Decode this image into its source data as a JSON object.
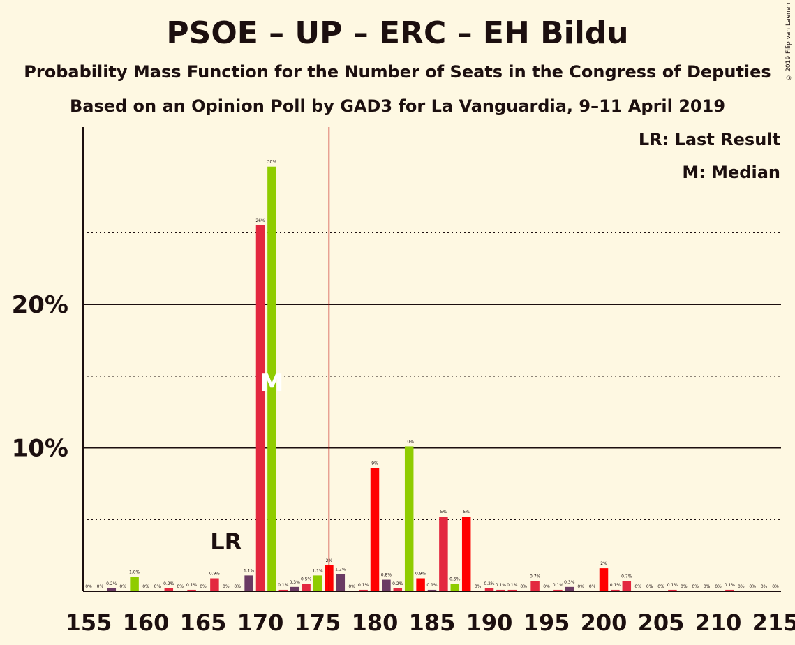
{
  "title": "PSOE – UP – ERC – EH Bildu",
  "subtitle": "Probability Mass Function for the Number of Seats in the Congress of Deputies",
  "source_line": "Based on an Opinion Poll by GAD3 for La Vanguardia, 9–11 April 2019",
  "copyright": "© 2019 Filip van Laenen",
  "legend": {
    "last_result": "LR: Last Result",
    "median": "M: Median"
  },
  "markers": {
    "last_result_label": "LR",
    "median_label": "M"
  },
  "colors": {
    "background": "#fef8e2",
    "red": "#e3283f",
    "bright_red": "#ff0000",
    "green": "#8fcc00",
    "purple": "#6b3b63",
    "threshold_line": "#c00000",
    "text": "#1c0f0f"
  },
  "chart_data": {
    "type": "bar",
    "title": "PSOE – UP – ERC – EH Bildu",
    "subtitle": "Probability Mass Function for the Number of Seats in the Congress of Deputies",
    "xlabel": "",
    "ylabel": "",
    "xlim": [
      155,
      215
    ],
    "ylim": [
      0,
      32
    ],
    "x_ticks": [
      155,
      160,
      165,
      170,
      175,
      180,
      185,
      190,
      195,
      200,
      205,
      210,
      215
    ],
    "y_ticks": [
      {
        "value": 10,
        "label": "10%"
      },
      {
        "value": 20,
        "label": "20%"
      }
    ],
    "minor_gridlines": [
      5,
      15,
      25
    ],
    "majority_line": 176,
    "last_result": 167,
    "median": 171,
    "grid": true,
    "legend_position": "top-right",
    "bars": [
      {
        "x": 155,
        "value": 0,
        "label": "0%",
        "color": "#e3283f"
      },
      {
        "x": 156,
        "value": 0,
        "label": "0%",
        "color": "#e3283f"
      },
      {
        "x": 157,
        "value": 0.2,
        "label": "0.2%",
        "color": "#6b3b63"
      },
      {
        "x": 158,
        "value": 0,
        "label": "0%",
        "color": "#e3283f"
      },
      {
        "x": 159,
        "value": 1.0,
        "label": "1.0%",
        "color": "#8fcc00"
      },
      {
        "x": 160,
        "value": 0,
        "label": "0%",
        "color": "#e3283f"
      },
      {
        "x": 161,
        "value": 0,
        "label": "0%",
        "color": "#e3283f"
      },
      {
        "x": 162,
        "value": 0.2,
        "label": "0.2%",
        "color": "#e3283f"
      },
      {
        "x": 163,
        "value": 0,
        "label": "0%",
        "color": "#e3283f"
      },
      {
        "x": 164,
        "value": 0.1,
        "label": "0.1%",
        "color": "#e3283f"
      },
      {
        "x": 165,
        "value": 0,
        "label": "0%",
        "color": "#e3283f"
      },
      {
        "x": 166,
        "value": 0.9,
        "label": "0.9%",
        "color": "#e3283f"
      },
      {
        "x": 167,
        "value": 0,
        "label": "0%",
        "color": "#e3283f"
      },
      {
        "x": 168,
        "value": 0,
        "label": "0%",
        "color": "#e3283f"
      },
      {
        "x": 169,
        "value": 1.1,
        "label": "1.1%",
        "color": "#6b3b63"
      },
      {
        "x": 170,
        "value": 25.5,
        "label": "26%",
        "color": "#e3283f"
      },
      {
        "x": 171,
        "value": 29.6,
        "label": "30%",
        "color": "#8fcc00"
      },
      {
        "x": 172,
        "value": 0.1,
        "label": "0.1%",
        "color": "#e3283f"
      },
      {
        "x": 173,
        "value": 0.3,
        "label": "0.3%",
        "color": "#6b3b63"
      },
      {
        "x": 174,
        "value": 0.5,
        "label": "0.5%",
        "color": "#e3283f"
      },
      {
        "x": 175,
        "value": 1.1,
        "label": "1.1%",
        "color": "#8fcc00"
      },
      {
        "x": 176,
        "value": 1.8,
        "label": "2%",
        "color": "#ff0000"
      },
      {
        "x": 177,
        "value": 1.2,
        "label": "1.2%",
        "color": "#6b3b63"
      },
      {
        "x": 178,
        "value": 0,
        "label": "0%",
        "color": "#e3283f"
      },
      {
        "x": 179,
        "value": 0.1,
        "label": "0.1%",
        "color": "#e3283f"
      },
      {
        "x": 180,
        "value": 8.6,
        "label": "9%",
        "color": "#ff0000"
      },
      {
        "x": 181,
        "value": 0.8,
        "label": "0.8%",
        "color": "#6b3b63"
      },
      {
        "x": 182,
        "value": 0.2,
        "label": "0.2%",
        "color": "#e3283f"
      },
      {
        "x": 183,
        "value": 10.1,
        "label": "10%",
        "color": "#8fcc00"
      },
      {
        "x": 184,
        "value": 0.9,
        "label": "0.9%",
        "color": "#ff0000"
      },
      {
        "x": 185,
        "value": 0.1,
        "label": "0.1%",
        "color": "#6b3b63"
      },
      {
        "x": 186,
        "value": 5.2,
        "label": "5%",
        "color": "#e3283f"
      },
      {
        "x": 187,
        "value": 0.5,
        "label": "0.5%",
        "color": "#8fcc00"
      },
      {
        "x": 188,
        "value": 5.2,
        "label": "5%",
        "color": "#ff0000"
      },
      {
        "x": 189,
        "value": 0,
        "label": "0%",
        "color": "#e3283f"
      },
      {
        "x": 190,
        "value": 0.2,
        "label": "0.2%",
        "color": "#e3283f"
      },
      {
        "x": 191,
        "value": 0.1,
        "label": "0.1%",
        "color": "#e3283f"
      },
      {
        "x": 192,
        "value": 0.1,
        "label": "0.1%",
        "color": "#e3283f"
      },
      {
        "x": 193,
        "value": 0,
        "label": "0%",
        "color": "#e3283f"
      },
      {
        "x": 194,
        "value": 0.7,
        "label": "0.7%",
        "color": "#e3283f"
      },
      {
        "x": 195,
        "value": 0,
        "label": "0%",
        "color": "#e3283f"
      },
      {
        "x": 196,
        "value": 0.1,
        "label": "0.1%",
        "color": "#e3283f"
      },
      {
        "x": 197,
        "value": 0.3,
        "label": "0.3%",
        "color": "#6b3b63"
      },
      {
        "x": 198,
        "value": 0,
        "label": "0%",
        "color": "#e3283f"
      },
      {
        "x": 199,
        "value": 0,
        "label": "0%",
        "color": "#e3283f"
      },
      {
        "x": 200,
        "value": 1.6,
        "label": "2%",
        "color": "#ff0000"
      },
      {
        "x": 201,
        "value": 0.1,
        "label": "0.1%",
        "color": "#e3283f"
      },
      {
        "x": 202,
        "value": 0.7,
        "label": "0.7%",
        "color": "#e3283f"
      },
      {
        "x": 203,
        "value": 0,
        "label": "0%",
        "color": "#e3283f"
      },
      {
        "x": 204,
        "value": 0,
        "label": "0%",
        "color": "#e3283f"
      },
      {
        "x": 205,
        "value": 0,
        "label": "0%",
        "color": "#e3283f"
      },
      {
        "x": 206,
        "value": 0.1,
        "label": "0.1%",
        "color": "#e3283f"
      },
      {
        "x": 207,
        "value": 0,
        "label": "0%",
        "color": "#e3283f"
      },
      {
        "x": 208,
        "value": 0,
        "label": "0%",
        "color": "#e3283f"
      },
      {
        "x": 209,
        "value": 0,
        "label": "0%",
        "color": "#e3283f"
      },
      {
        "x": 210,
        "value": 0,
        "label": "0%",
        "color": "#e3283f"
      },
      {
        "x": 211,
        "value": 0.1,
        "label": "0.1%",
        "color": "#e3283f"
      },
      {
        "x": 212,
        "value": 0,
        "label": "0%",
        "color": "#e3283f"
      },
      {
        "x": 213,
        "value": 0,
        "label": "0%",
        "color": "#e3283f"
      },
      {
        "x": 214,
        "value": 0,
        "label": "0%",
        "color": "#e3283f"
      },
      {
        "x": 215,
        "value": 0,
        "label": "0%",
        "color": "#e3283f"
      }
    ]
  }
}
